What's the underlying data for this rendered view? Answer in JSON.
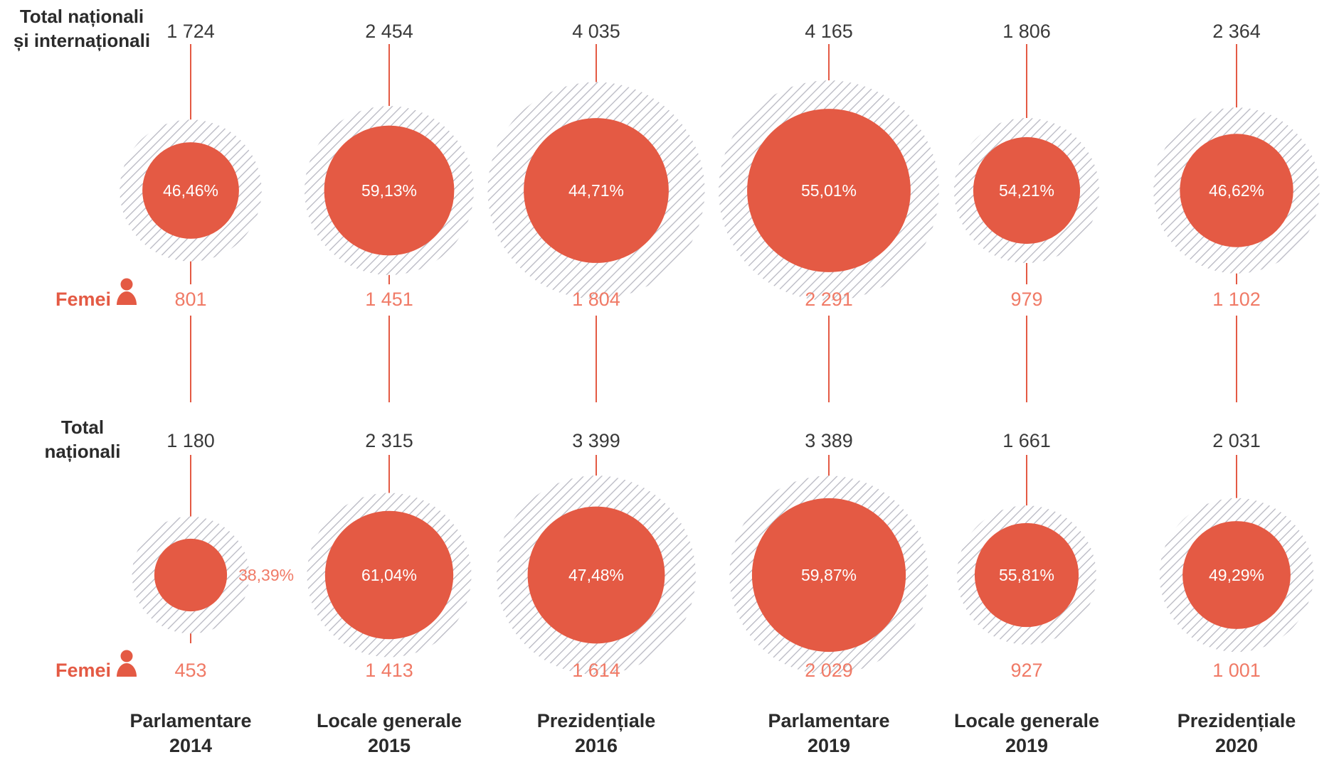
{
  "colors": {
    "accent": "#e45a44",
    "accent_light": "#f07a66",
    "hatch": "#b8b8c2",
    "text_dark": "#3a3a3a",
    "label_dark": "#2b2b2b"
  },
  "labels": {
    "row1_line1": "Total naționali",
    "row1_line2": "și internaționali",
    "row2_line1": "Total",
    "row2_line2": "naționali",
    "women": "Femei",
    "women_icon": "woman-icon"
  },
  "chart_data": {
    "type": "bubble",
    "categories": [
      [
        "Parlamentare",
        "2014"
      ],
      [
        "Locale generale",
        "2015"
      ],
      [
        "Prezidențiale",
        "2016"
      ],
      [
        "Parlamentare",
        "2019"
      ],
      [
        "Locale generale",
        "2019"
      ],
      [
        "Prezidențiale",
        "2020"
      ]
    ],
    "rows": [
      {
        "total": [
          "1 724",
          "2 454",
          "4 035",
          "4 165",
          "1 806",
          "2 364"
        ],
        "total_values": [
          1724,
          2454,
          4035,
          4165,
          1806,
          2364
        ],
        "women": [
          "801",
          "1 451",
          "1 804",
          "2 291",
          "979",
          "1 102"
        ],
        "women_values": [
          801,
          1451,
          1804,
          2291,
          979,
          1102
        ],
        "percent": [
          "46,46%",
          "59,13%",
          "44,71%",
          "55,01%",
          "54,21%",
          "46,62%"
        ]
      },
      {
        "total": [
          "1 180",
          "2 315",
          "3 399",
          "3 389",
          "1 661",
          "2 031"
        ],
        "total_values": [
          1180,
          2315,
          3399,
          3389,
          1661,
          2031
        ],
        "women": [
          "453",
          "1 413",
          "1 614",
          "2 029",
          "927",
          "1 001"
        ],
        "women_values": [
          453,
          1413,
          1614,
          2029,
          927,
          1001
        ],
        "percent": [
          "38,39%",
          "61,04%",
          "47,48%",
          "59,87%",
          "55,81%",
          "49,29%"
        ]
      }
    ]
  }
}
